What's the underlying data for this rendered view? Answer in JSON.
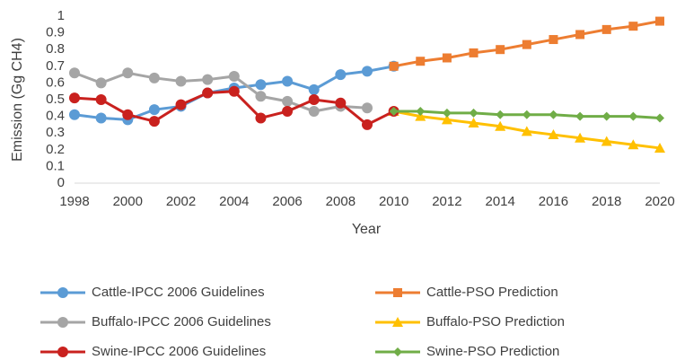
{
  "chart_data": {
    "type": "line",
    "xlabel": "Year",
    "ylabel": "Emission (Gg CH4)",
    "x": [
      1998,
      1999,
      2000,
      2001,
      2002,
      2003,
      2004,
      2005,
      2006,
      2007,
      2008,
      2009,
      2010,
      2011,
      2012,
      2013,
      2014,
      2015,
      2016,
      2017,
      2018,
      2019,
      2020
    ],
    "xlim": [
      1998,
      2020
    ],
    "xticks": [
      1998,
      2000,
      2002,
      2004,
      2006,
      2008,
      2010,
      2012,
      2014,
      2016,
      2018,
      2020
    ],
    "ylim": [
      0,
      1
    ],
    "yticks": [
      0,
      0.1,
      0.2,
      0.3,
      0.4,
      0.5,
      0.6,
      0.7,
      0.8,
      0.9,
      1
    ],
    "grid": false,
    "legend": "bottom",
    "series": [
      {
        "name": "Cattle-IPCC 2006 Guidelines",
        "color": "#5b9bd5",
        "marker": "circle",
        "values": [
          0.41,
          0.39,
          0.38,
          0.44,
          0.46,
          0.54,
          0.57,
          0.59,
          0.61,
          0.56,
          0.65,
          0.67,
          0.7,
          null,
          null,
          null,
          null,
          null,
          null,
          null,
          null,
          null,
          null
        ]
      },
      {
        "name": "Cattle-PSO Prediction",
        "color": "#ed7d31",
        "marker": "square",
        "values": [
          null,
          null,
          null,
          null,
          null,
          null,
          null,
          null,
          null,
          null,
          null,
          null,
          0.7,
          0.73,
          0.75,
          0.78,
          0.8,
          0.83,
          0.86,
          0.89,
          0.92,
          0.94,
          0.97
        ]
      },
      {
        "name": "Buffalo-IPCC 2006 Guidelines",
        "color": "#a5a5a5",
        "marker": "circle",
        "values": [
          0.66,
          0.6,
          0.66,
          0.63,
          0.61,
          0.62,
          0.64,
          0.52,
          0.49,
          0.43,
          0.46,
          0.45,
          null,
          null,
          null,
          null,
          null,
          null,
          null,
          null,
          null,
          null,
          null
        ]
      },
      {
        "name": "Buffalo-PSO Prediction",
        "color": "#ffc000",
        "marker": "triangle",
        "values": [
          null,
          null,
          null,
          null,
          null,
          null,
          null,
          null,
          null,
          null,
          null,
          null,
          0.43,
          0.4,
          0.38,
          0.36,
          0.34,
          0.31,
          0.29,
          0.27,
          0.25,
          0.23,
          0.21
        ]
      },
      {
        "name": "Swine-IPCC 2006 Guidelines",
        "color": "#c9211e",
        "marker": "circle",
        "values": [
          0.51,
          0.5,
          0.41,
          0.37,
          0.47,
          0.54,
          0.55,
          0.39,
          0.43,
          0.5,
          0.48,
          0.35,
          0.43,
          null,
          null,
          null,
          null,
          null,
          null,
          null,
          null,
          null,
          null
        ]
      },
      {
        "name": "Swine-PSO Prediction",
        "color": "#70ad47",
        "marker": "diamond",
        "values": [
          null,
          null,
          null,
          null,
          null,
          null,
          null,
          null,
          null,
          null,
          null,
          null,
          0.43,
          0.43,
          0.42,
          0.42,
          0.41,
          0.41,
          0.41,
          0.4,
          0.4,
          0.4,
          0.39
        ]
      }
    ]
  }
}
